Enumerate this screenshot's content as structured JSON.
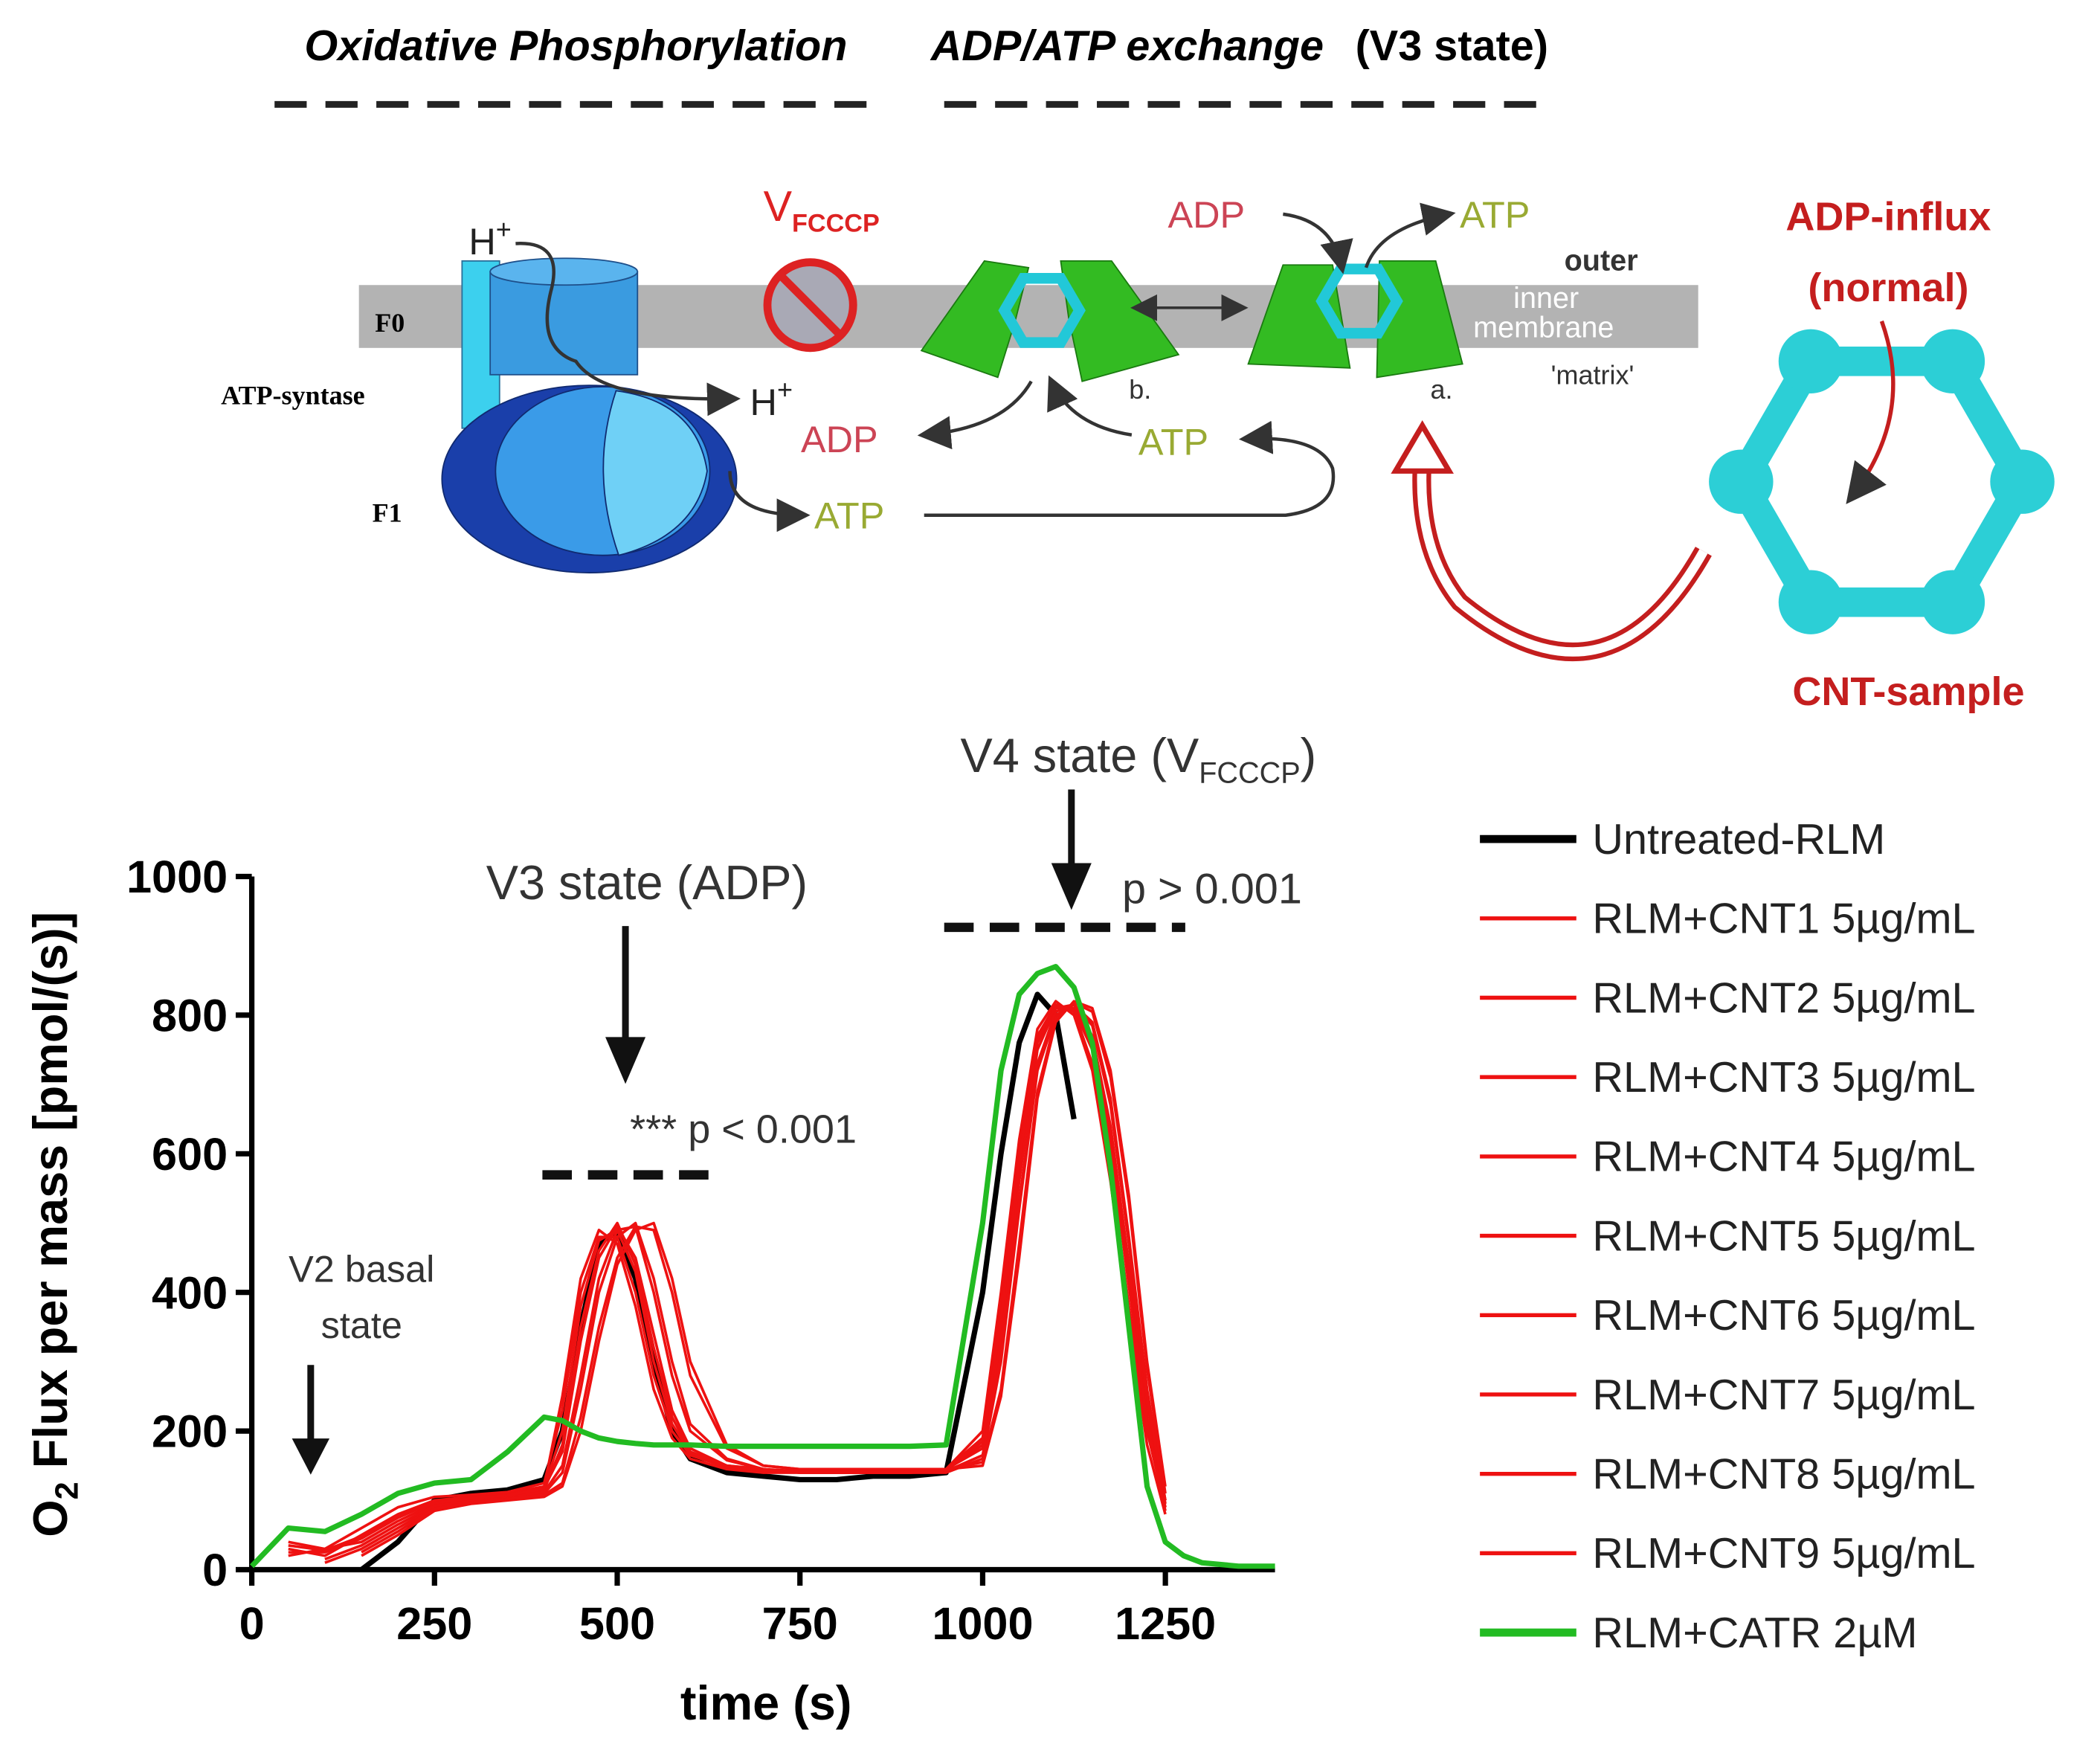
{
  "diagram": {
    "title_left": "Oxidative Phosphorylation",
    "title_right": "ADP/ATP exchange",
    "title_right_note": "(V3 state)",
    "v_fcccp": {
      "text": "V",
      "sub": "FCCCP"
    },
    "h_top": {
      "text": "H",
      "sup": "+"
    },
    "h_bottom": {
      "text": "H",
      "sup": "+"
    },
    "f0": "F0",
    "atp_syntase": "ATP-syntase",
    "f1": "F1",
    "adp_left": "ADP",
    "atp_mid": "ATP",
    "atp_bottom": "ATP",
    "adp_top": "ADP",
    "atp_top": "ATP",
    "outer": "outer",
    "inner": "inner",
    "membrane": "membrane",
    "matrix": "'matrix'",
    "b": "b.",
    "a": "a.",
    "adp_influx": "ADP-influx",
    "normal": "(normal)",
    "cnt_sample": "CNT-sample"
  },
  "chart_data": {
    "type": "line",
    "x_label": "time (s)",
    "y_label": {
      "text": "O",
      "sub": "2",
      "rest": "Flux per mass [pmol/(s)]"
    },
    "annotations": {
      "v2_line1": "V2 basal",
      "v2_line2": "state",
      "v3": "V3 state (ADP)",
      "v3_p": "*** p < 0.001",
      "v4": {
        "text": "V4 state (V",
        "sub": "FCCCP",
        "end": ")"
      },
      "v4_p": "p > 0.001"
    },
    "xlim": [
      0,
      1400
    ],
    "xticks": [
      0,
      250,
      500,
      750,
      1000,
      1250
    ],
    "ylim": [
      0,
      1000
    ],
    "yticks": [
      0,
      200,
      400,
      600,
      800,
      1000
    ],
    "grid": false,
    "legend": "right",
    "x": [
      0,
      50,
      100,
      150,
      200,
      250,
      300,
      350,
      400,
      425,
      450,
      475,
      500,
      525,
      550,
      575,
      600,
      650,
      700,
      750,
      800,
      850,
      900,
      950,
      1000,
      1025,
      1050,
      1075,
      1100,
      1125,
      1150,
      1175,
      1200,
      1225,
      1250,
      1275,
      1300,
      1350,
      1400
    ],
    "series": [
      {
        "name": "Untreated-RLM",
        "color": "#000000",
        "line_width": 4,
        "values": [
          null,
          null,
          null,
          0,
          40,
          100,
          110,
          115,
          130,
          200,
          350,
          470,
          490,
          420,
          300,
          200,
          160,
          140,
          135,
          130,
          130,
          135,
          135,
          140,
          400,
          600,
          760,
          830,
          800,
          650,
          null,
          null,
          null,
          null,
          null,
          null,
          null,
          null,
          null
        ]
      },
      {
        "name": "RLM+CNT1 5µg/mL",
        "color": "#ee1111",
        "line_width": 2,
        "values": [
          null,
          30,
          20,
          50,
          80,
          100,
          105,
          110,
          120,
          250,
          420,
          490,
          470,
          380,
          260,
          190,
          160,
          145,
          140,
          140,
          140,
          140,
          140,
          145,
          200,
          400,
          620,
          780,
          820,
          800,
          720,
          560,
          360,
          180,
          80,
          null,
          null,
          null,
          null
        ]
      },
      {
        "name": "RLM+CNT2 5µg/mL",
        "color": "#ee1111",
        "line_width": 2,
        "values": [
          null,
          20,
          30,
          40,
          70,
          95,
          100,
          105,
          115,
          180,
          350,
          460,
          500,
          440,
          320,
          220,
          170,
          150,
          145,
          140,
          140,
          140,
          140,
          145,
          180,
          350,
          580,
          760,
          810,
          810,
          760,
          620,
          420,
          220,
          90,
          null,
          null,
          null,
          null
        ]
      },
      {
        "name": "RLM+CNT3 5µg/mL",
        "color": "#ee1111",
        "line_width": 2,
        "values": [
          null,
          null,
          10,
          30,
          60,
          90,
          100,
          105,
          110,
          140,
          260,
          400,
          480,
          500,
          420,
          300,
          210,
          160,
          145,
          140,
          140,
          140,
          140,
          140,
          160,
          300,
          520,
          720,
          800,
          815,
          790,
          680,
          480,
          260,
          100,
          null,
          null,
          null,
          null
        ]
      },
      {
        "name": "RLM+CNT4 5µg/mL",
        "color": "#ee1111",
        "line_width": 2,
        "values": [
          null,
          null,
          null,
          20,
          50,
          85,
          95,
          100,
          105,
          120,
          200,
          330,
          440,
          490,
          500,
          420,
          300,
          180,
          150,
          145,
          145,
          145,
          145,
          145,
          150,
          250,
          450,
          680,
          790,
          820,
          810,
          720,
          540,
          300,
          120,
          null,
          null,
          null,
          null
        ]
      },
      {
        "name": "RLM+CNT5 5µg/mL",
        "color": "#ee1111",
        "line_width": 2,
        "values": [
          null,
          40,
          30,
          60,
          90,
          105,
          108,
          112,
          125,
          230,
          400,
          480,
          480,
          400,
          280,
          200,
          165,
          148,
          142,
          142,
          142,
          142,
          142,
          145,
          190,
          380,
          600,
          770,
          815,
          805,
          730,
          580,
          380,
          200,
          90,
          null,
          null,
          null,
          null
        ]
      },
      {
        "name": "RLM+CNT6 5µg/mL",
        "color": "#ee1111",
        "line_width": 2,
        "values": [
          null,
          25,
          25,
          45,
          75,
          98,
          102,
          108,
          118,
          170,
          330,
          450,
          495,
          450,
          340,
          230,
          175,
          150,
          145,
          142,
          142,
          142,
          142,
          145,
          175,
          330,
          560,
          750,
          810,
          815,
          770,
          640,
          440,
          240,
          100,
          null,
          null,
          null,
          null
        ]
      },
      {
        "name": "RLM+CNT7 5µg/mL",
        "color": "#ee1111",
        "line_width": 2,
        "values": [
          null,
          null,
          15,
          35,
          65,
          92,
          100,
          104,
          112,
          150,
          280,
          420,
          490,
          495,
          400,
          280,
          200,
          158,
          145,
          140,
          140,
          140,
          140,
          142,
          165,
          310,
          530,
          730,
          805,
          815,
          785,
          670,
          470,
          250,
          95,
          null,
          null,
          null,
          null
        ]
      },
      {
        "name": "RLM+CNT8 5µg/mL",
        "color": "#ee1111",
        "line_width": 2,
        "values": [
          null,
          null,
          null,
          25,
          55,
          88,
          97,
          102,
          108,
          125,
          220,
          350,
          450,
          495,
          490,
          400,
          280,
          175,
          150,
          145,
          145,
          145,
          145,
          145,
          155,
          260,
          470,
          690,
          795,
          818,
          805,
          710,
          530,
          290,
          110,
          null,
          null,
          null,
          null
        ]
      },
      {
        "name": "RLM+CNT9 5µg/mL",
        "color": "#ee1111",
        "line_width": 2,
        "values": [
          null,
          35,
          28,
          48,
          78,
          96,
          103,
          107,
          117,
          200,
          380,
          475,
          490,
          430,
          300,
          210,
          168,
          150,
          143,
          141,
          141,
          141,
          141,
          144,
          185,
          360,
          590,
          765,
          812,
          808,
          750,
          610,
          410,
          210,
          85,
          null,
          null,
          null,
          null
        ]
      },
      {
        "name": "RLM+CATR 2µM",
        "color": "#22bb22",
        "line_width": 4,
        "values": [
          5,
          60,
          55,
          80,
          110,
          125,
          130,
          170,
          220,
          215,
          200,
          190,
          185,
          182,
          180,
          180,
          180,
          178,
          178,
          178,
          178,
          178,
          178,
          180,
          500,
          720,
          830,
          860,
          870,
          840,
          760,
          580,
          350,
          120,
          40,
          20,
          10,
          5,
          5
        ]
      }
    ]
  }
}
